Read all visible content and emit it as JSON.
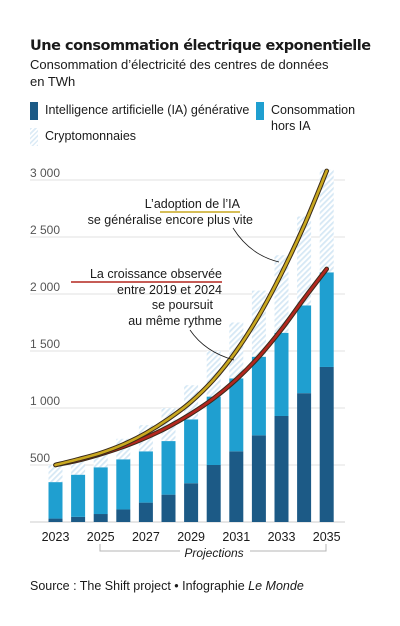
{
  "header": {
    "title": "Une consommation électrique exponentielle",
    "subtitle": "Consommation d’électricité des centres de données",
    "unit": "en TWh"
  },
  "legend": {
    "ai": "Intelligence artificielle (IA) générative",
    "nonai_line1": "Consommation",
    "nonai_line2": "hors IA",
    "crypto": "Cryptomonnaies"
  },
  "colors": {
    "ai": "#1c5a86",
    "nonai": "#1f9fd0",
    "crypto_hatch": "#dcebf6",
    "ai_adoption_curve": "#c9a820",
    "observed_growth_curve": "#b3271e"
  },
  "annotations": {
    "adoption_line1": "L’adoption de l’IA",
    "adoption_line2": "se généralise encore plus vite",
    "growth_line1": "La croissance observée",
    "growth_line2": "entre 2019 et 2024",
    "growth_line3": "se poursuit",
    "growth_line4": "au même rythme",
    "projections": "Projections"
  },
  "source": {
    "text": "Source : The Shift project • Infographie ",
    "publisher": "Le Monde"
  },
  "chart_data": {
    "type": "bar",
    "stacked": true,
    "categories": [
      "2023",
      "2024",
      "2025",
      "2026",
      "2027",
      "2028",
      "2029",
      "2030",
      "2031",
      "2032",
      "2033",
      "2034",
      "2035"
    ],
    "x_tick_labels": [
      "2023",
      "2025",
      "2027",
      "2029",
      "2031",
      "2033",
      "2035"
    ],
    "ylim": [
      0,
      3100
    ],
    "y_ticks": [
      500,
      1000,
      1500,
      2000,
      2500,
      3000
    ],
    "y_tick_labels": [
      "500",
      "1 000",
      "1 500",
      "2 000",
      "2 500",
      "3 000"
    ],
    "grid": true,
    "projection_range": [
      "2025",
      "2035"
    ],
    "series": [
      {
        "name": "Intelligence artificielle (IA) générative",
        "values": [
          30,
          45,
          70,
          110,
          170,
          240,
          340,
          500,
          620,
          760,
          930,
          1130,
          1360
        ]
      },
      {
        "name": "Consommation hors IA",
        "values": [
          320,
          370,
          410,
          440,
          450,
          470,
          560,
          600,
          640,
          690,
          730,
          770,
          830
        ]
      },
      {
        "name": "Cryptomonnaies",
        "values": [
          150,
          130,
          130,
          180,
          230,
          290,
          300,
          400,
          490,
          580,
          680,
          780,
          900
        ]
      }
    ],
    "curves": [
      {
        "name": "L’adoption de l’IA se généralise encore plus vite",
        "values": [
          500,
          550,
          605,
          680,
          780,
          905,
          1055,
          1250,
          1500,
          1810,
          2180,
          2600,
          3080
        ]
      },
      {
        "name": "La croissance observée entre 2019 et 2024 se poursuit au même rythme",
        "values": [
          500,
          540,
          595,
          660,
          740,
          835,
          950,
          1085,
          1250,
          1450,
          1690,
          1960,
          2220
        ]
      }
    ]
  }
}
